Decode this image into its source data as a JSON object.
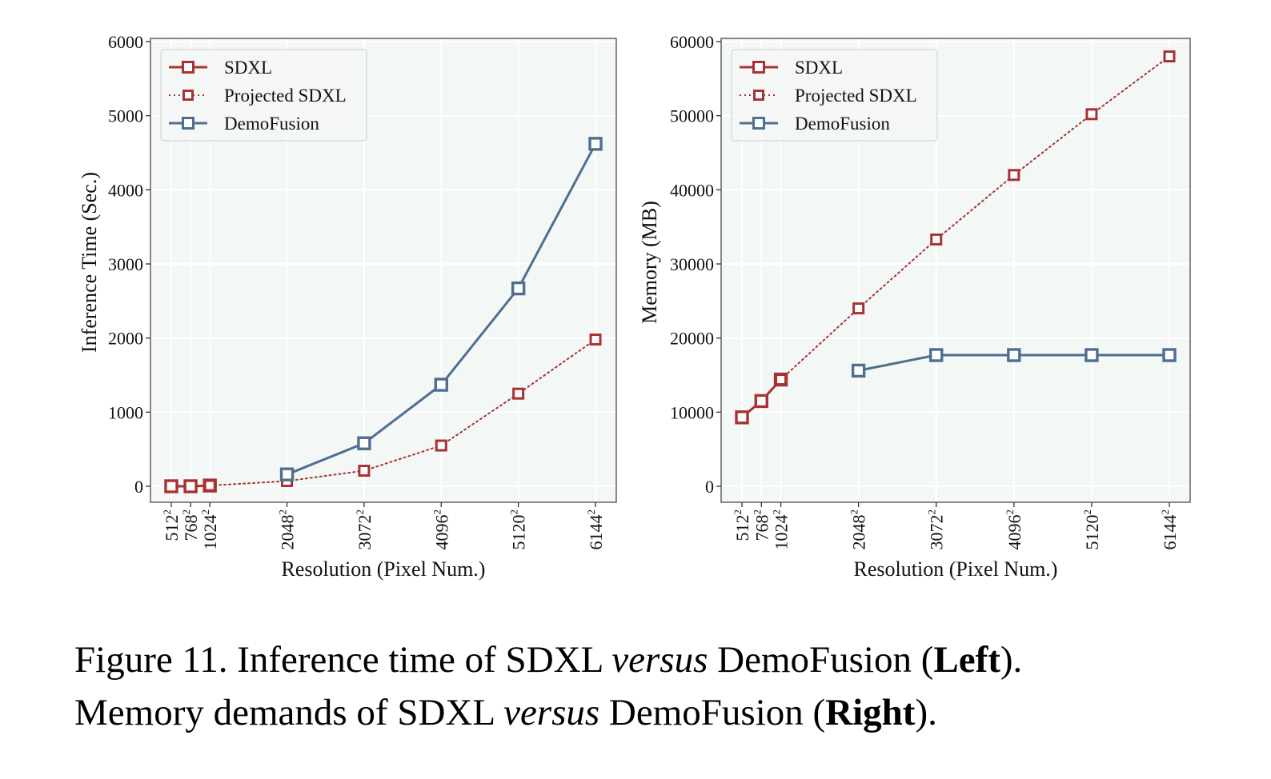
{
  "chart_data": [
    {
      "id": "left",
      "type": "line",
      "title": "",
      "xlabel": "Resolution (Pixel Num.)",
      "ylabel": "Inference Time (Sec.)",
      "ylim": [
        0,
        6000
      ],
      "yticks": [
        "0",
        "1000",
        "2000",
        "3000",
        "4000",
        "5000",
        "6000"
      ],
      "x": [
        512,
        768,
        1024,
        2048,
        3072,
        4096,
        5120,
        6144
      ],
      "xtick_bases": [
        "512",
        "768",
        "1024",
        "2048",
        "3072",
        "4096",
        "5120",
        "6144"
      ],
      "xtick_exp": "2",
      "grid": true,
      "legend_position": "top-left",
      "series": [
        {
          "name": "SDXL",
          "style": "solid",
          "color": "#a83232",
          "x": [
            512,
            768,
            1024
          ],
          "values": [
            0,
            0,
            10
          ]
        },
        {
          "name": "Projected SDXL",
          "style": "dotted",
          "color": "#a83232",
          "x": [
            1024,
            2048,
            3072,
            4096,
            5120,
            6144
          ],
          "values": [
            10,
            70,
            210,
            550,
            1250,
            1980
          ]
        },
        {
          "name": "DemoFusion",
          "style": "solid",
          "color": "#4e6f8f",
          "x": [
            2048,
            3072,
            4096,
            5120,
            6144
          ],
          "values": [
            160,
            580,
            1370,
            2670,
            4620
          ]
        }
      ]
    },
    {
      "id": "right",
      "type": "line",
      "title": "",
      "xlabel": "Resolution (Pixel Num.)",
      "ylabel": "Memory (MB)",
      "ylim": [
        0,
        60000
      ],
      "yticks": [
        "0",
        "10000",
        "20000",
        "30000",
        "40000",
        "50000",
        "60000"
      ],
      "x": [
        512,
        768,
        1024,
        2048,
        3072,
        4096,
        5120,
        6144
      ],
      "xtick_bases": [
        "512",
        "768",
        "1024",
        "2048",
        "3072",
        "4096",
        "5120",
        "6144"
      ],
      "xtick_exp": "2",
      "grid": true,
      "legend_position": "top-left",
      "series": [
        {
          "name": "SDXL",
          "style": "solid",
          "color": "#a83232",
          "x": [
            512,
            768,
            1024
          ],
          "values": [
            9300,
            11500,
            14400
          ]
        },
        {
          "name": "Projected SDXL",
          "style": "dotted",
          "color": "#a83232",
          "x": [
            1024,
            2048,
            3072,
            4096,
            5120,
            6144
          ],
          "values": [
            14400,
            24000,
            33300,
            42000,
            50200,
            58000
          ]
        },
        {
          "name": "DemoFusion",
          "style": "solid",
          "color": "#4e6f8f",
          "x": [
            2048,
            3072,
            4096,
            5120,
            6144
          ],
          "values": [
            15600,
            17700,
            17700,
            17700,
            17700
          ]
        }
      ]
    }
  ],
  "colors": {
    "plot_background": "#f3f7f6",
    "grid": "#ffffff",
    "sdxl": "#a83232",
    "demofusion": "#4e6f8f"
  },
  "caption": {
    "line1_prefix": "Figure 11.  Inference time of SDXL ",
    "line1_italic": "versus",
    "line1_middle": " DemoFusion (",
    "line1_bold": "Left",
    "line1_end": ").",
    "line2_prefix": "Memory demands of SDXL ",
    "line2_italic": "versus",
    "line2_middle": " DemoFusion (",
    "line2_bold": "Right",
    "line2_end": ")."
  }
}
